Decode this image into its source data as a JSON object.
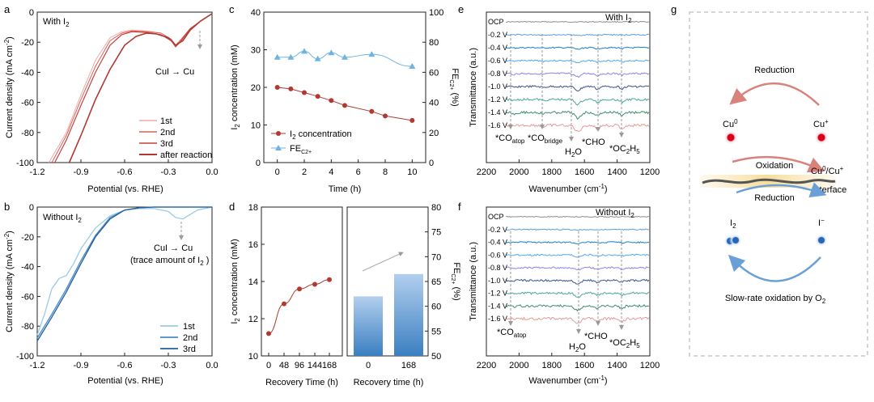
{
  "panels": {
    "a": {
      "letter": "a",
      "condition": "With I",
      "condition_sub": "2",
      "ylabel": "Current density (mA cm",
      "ylabel_sup": "-2",
      "ylabel_end": ")",
      "xlabel": "Potential (vs. RHE)",
      "annotation": "CuI → Cu",
      "x_ticks": [
        "-1.2",
        "-0.9",
        "-0.6",
        "-0.3",
        "0.0"
      ],
      "y_ticks": [
        "0",
        "-20",
        "-40",
        "-60",
        "-80",
        "-100"
      ],
      "legend": [
        "1st",
        "2nd",
        "3rd",
        "after reaction"
      ]
    },
    "b": {
      "letter": "b",
      "condition": "Without I",
      "condition_sub": "2",
      "ylabel": "Current density (mA cm",
      "ylabel_sup": "-2",
      "ylabel_end": ")",
      "xlabel": "Potential (vs. RHE)",
      "annotation_1": "CuI → Cu",
      "annotation_2": "(trace amount of I",
      "annotation_2_sub": "2",
      "annotation_2_end": " )",
      "x_ticks": [
        "-1.2",
        "-0.9",
        "-0.6",
        "-0.3",
        "0.0"
      ],
      "y_ticks": [
        "0",
        "-20",
        "-40",
        "-60",
        "-80",
        "-100"
      ],
      "legend": [
        "1st",
        "2nd",
        "3rd"
      ]
    },
    "c": {
      "letter": "c",
      "ylabel_left": "I",
      "ylabel_left_sub": "2",
      "ylabel_left_end": " concentration (mM)",
      "ylabel_right": "FE",
      "ylabel_right_sub": "C2+",
      "ylabel_right_end": " (%)",
      "xlabel": "Time (h)",
      "x_ticks": [
        "0",
        "2",
        "4",
        "6",
        "8",
        "10"
      ],
      "y_ticks_left": [
        "0",
        "10",
        "20",
        "30",
        "40"
      ],
      "y_ticks_right": [
        "0",
        "20",
        "40",
        "60",
        "80",
        "100"
      ],
      "legend": [
        {
          "label": "I",
          "sub": "2",
          "end": " concentration"
        },
        {
          "label": "FE",
          "sub": "C2+",
          "end": ""
        }
      ]
    },
    "d": {
      "letter": "d",
      "ylabel_left": "I",
      "ylabel_left_sub": "2",
      "ylabel_left_end": " concentration (mM)",
      "ylabel_right": "FE",
      "ylabel_right_sub": "C2+",
      "ylabel_right_end": " (%)",
      "xlabel_left": "Recovery Time (h)",
      "xlabel_right": "Recovery time (h)",
      "x_ticks_left": [
        "0",
        "48",
        "96",
        "144",
        "168"
      ],
      "x_ticks_right": [
        "0",
        "168"
      ],
      "y_ticks_left": [
        "10",
        "12",
        "14",
        "16",
        "18"
      ],
      "y_ticks_right": [
        "50",
        "55",
        "60",
        "65",
        "70",
        "75",
        "80"
      ]
    },
    "e": {
      "letter": "e",
      "condition": "With I",
      "condition_sub": "2",
      "ylabel": "Transmittance (a.u.)",
      "xlabel": "Wavenumber (cm",
      "xlabel_sup": "-1",
      "xlabel_end": ")",
      "x_ticks": [
        "2200",
        "2000",
        "1800",
        "1600",
        "1400",
        "1200"
      ],
      "trace_labels": [
        "OCP",
        "-0.2 V",
        "-0.4 V",
        "-0.6 V",
        "-0.8 V",
        "-1.0 V",
        "-1.2 V",
        "-1.4 V",
        "-1.6 V"
      ],
      "peak_labels": [
        {
          "text": "*CO",
          "sub": "atop"
        },
        {
          "text": "*CO",
          "sub": "bridge"
        },
        {
          "text": "H",
          "sub": "2",
          "end": "O"
        },
        {
          "text": "*CHO",
          "sub": "",
          "end": ""
        },
        {
          "text": "*OC",
          "sub": "2",
          "end": "H",
          "sub2": "5"
        }
      ]
    },
    "f": {
      "letter": "f",
      "condition": "Without I",
      "condition_sub": "2",
      "ylabel": "Transmittance (a.u.)",
      "xlabel": "Wavenumber (cm",
      "xlabel_sup": "-1",
      "xlabel_end": ")",
      "x_ticks": [
        "2200",
        "2000",
        "1800",
        "1600",
        "1400",
        "1200"
      ],
      "trace_labels": [
        "OCP",
        "-0.2 V",
        "-0.4 V",
        "-0.6 V",
        "-0.8 V",
        "-1.0 V",
        "-1.2 V",
        "-1.4 V",
        "-1.6 V"
      ],
      "peak_labels": [
        {
          "text": "*CO",
          "sub": "atop"
        },
        {
          "text": "H",
          "sub": "2",
          "end": "O"
        },
        {
          "text": "*CHO",
          "sub": "",
          "end": ""
        },
        {
          "text": "*OC",
          "sub": "2",
          "end": "H",
          "sub2": "5"
        }
      ]
    },
    "g": {
      "letter": "g",
      "reduction_top": "Reduction",
      "oxidation": "Oxidation",
      "reduction_mid": "Reduction",
      "cu0": "Cu",
      "cu0_sup": "0",
      "cuplus": "Cu",
      "cuplus_sup": "+",
      "interface_1": "Cu",
      "interface_1_sup": "0",
      "interface_1_mid": "/Cu",
      "interface_1_sup2": "+",
      "interface_2": "interface",
      "i2": "I",
      "i2_sub": "2",
      "iminus": "I",
      "iminus_sup": "−",
      "slow": "Slow-rate oxidation by O",
      "slow_sub": "2"
    }
  },
  "colors": {
    "red_dark": "#b03a32",
    "red_mid": "#d8605a",
    "red_light": "#f0a9a6",
    "blue_dark": "#1f5f9e",
    "blue_mid": "#4a8ac4",
    "blue_light": "#9ccbe6",
    "fe_blue": "#6fb3de",
    "bar_top": "#a9c8e8",
    "bar_bot": "#3d82c4"
  },
  "chart_data": [
    {
      "panel": "a",
      "type": "line",
      "title": "With I2",
      "xlabel": "Potential (vs. RHE)",
      "ylabel": "Current density (mA cm-2)",
      "xlim": [
        -1.2,
        0.0
      ],
      "ylim": [
        -100,
        0
      ],
      "series": [
        {
          "name": "1st",
          "x": [
            -1.12,
            -1.0,
            -0.9,
            -0.8,
            -0.7,
            -0.62,
            -0.55,
            -0.45,
            -0.35,
            -0.28,
            -0.25,
            -0.22,
            -0.15,
            -0.08,
            0.0
          ],
          "y": [
            -100,
            -80,
            -55,
            -32,
            -17,
            -13,
            -12,
            -12.5,
            -14,
            -18,
            -22,
            -19,
            -11,
            -6,
            -1
          ]
        },
        {
          "name": "2nd",
          "x": [
            -1.1,
            -1.0,
            -0.9,
            -0.8,
            -0.7,
            -0.62,
            -0.55,
            -0.45,
            -0.35,
            -0.28,
            -0.25,
            -0.22,
            -0.15,
            -0.08,
            0.0
          ],
          "y": [
            -100,
            -82,
            -58,
            -36,
            -19,
            -14,
            -12.5,
            -13,
            -14,
            -18,
            -22,
            -19,
            -11,
            -6,
            -1
          ]
        },
        {
          "name": "3rd",
          "x": [
            -1.08,
            -1.0,
            -0.9,
            -0.8,
            -0.7,
            -0.62,
            -0.55,
            -0.45,
            -0.35,
            -0.28,
            -0.25,
            -0.22,
            -0.15,
            -0.08,
            0.0
          ],
          "y": [
            -100,
            -85,
            -62,
            -40,
            -22,
            -15,
            -13,
            -13.5,
            -15,
            -19,
            -23,
            -20,
            -11,
            -6,
            -1
          ]
        },
        {
          "name": "after reaction",
          "x": [
            -0.98,
            -0.9,
            -0.8,
            -0.7,
            -0.6,
            -0.52,
            -0.45,
            -0.38,
            -0.3,
            -0.25,
            -0.2,
            -0.15,
            -0.08,
            0.0
          ],
          "y": [
            -100,
            -82,
            -58,
            -38,
            -22,
            -16,
            -14,
            -14.5,
            -17,
            -22,
            -19,
            -12,
            -6,
            -1
          ]
        }
      ]
    },
    {
      "panel": "b",
      "type": "line",
      "title": "Without I2",
      "xlabel": "Potential (vs. RHE)",
      "ylabel": "Current density (mA cm-2)",
      "xlim": [
        -1.2,
        0.0
      ],
      "ylim": [
        -100,
        0
      ],
      "series": [
        {
          "name": "1st",
          "x": [
            -1.2,
            -1.15,
            -1.1,
            -1.05,
            -1.0,
            -0.95,
            -0.9,
            -0.8,
            -0.7,
            -0.6,
            -0.5,
            -0.4,
            -0.3,
            -0.25,
            -0.2,
            -0.15,
            -0.1,
            0.0
          ],
          "y": [
            -86,
            -72,
            -55,
            -48,
            -46,
            -38,
            -28,
            -14,
            -6,
            -2,
            -1,
            -1,
            -3,
            -7,
            -8,
            -5,
            -2,
            0
          ]
        },
        {
          "name": "2nd",
          "x": [
            -1.2,
            -1.1,
            -1.0,
            -0.9,
            -0.8,
            -0.7,
            -0.6,
            -0.5,
            -0.4,
            -0.3,
            -0.2,
            -0.1,
            0.0
          ],
          "y": [
            -88,
            -72,
            -55,
            -36,
            -19,
            -7,
            -2,
            -0.5,
            0,
            0,
            0,
            0,
            0
          ]
        },
        {
          "name": "3rd",
          "x": [
            -1.2,
            -1.1,
            -1.0,
            -0.9,
            -0.8,
            -0.7,
            -0.6,
            -0.5,
            -0.4,
            -0.3,
            -0.2,
            -0.1,
            0.0
          ],
          "y": [
            -90,
            -74,
            -57,
            -38,
            -20,
            -8,
            -2,
            -0.5,
            0,
            0,
            0,
            0,
            0
          ]
        }
      ]
    },
    {
      "panel": "c",
      "type": "line",
      "xlabel": "Time (h)",
      "ylabel": "I2 concentration (mM)",
      "ylabel_right": "FE C2+ (%)",
      "xlim": [
        -1,
        11
      ],
      "ylim": [
        0,
        40
      ],
      "ylim_right": [
        0,
        100
      ],
      "series": [
        {
          "name": "I2 concentration",
          "axis": "left",
          "x": [
            0,
            1,
            2,
            3,
            4,
            5,
            7,
            8,
            10
          ],
          "y": [
            20.0,
            19.6,
            18.6,
            17.6,
            16.5,
            15.2,
            13.6,
            12.4,
            11.2
          ]
        },
        {
          "name": "FE C2+",
          "axis": "right",
          "x": [
            0,
            1,
            2,
            3,
            4,
            5,
            7,
            10
          ],
          "y": [
            70,
            70,
            74,
            69,
            73,
            70,
            72,
            64
          ]
        }
      ]
    },
    {
      "panel": "d",
      "type": "line+bar",
      "xlabel": "Recovery Time (h)",
      "ylabel": "I2 concentration (mM)",
      "ylabel_right": "FE C2+ (%)",
      "ylim": [
        10,
        18
      ],
      "ylim_right": [
        50,
        80
      ],
      "series": [
        {
          "name": "I2 concentration",
          "axis": "left",
          "categories": [
            "0",
            "48",
            "96",
            "144",
            "168"
          ],
          "values": [
            11.2,
            12.8,
            13.6,
            13.85,
            14.1
          ]
        },
        {
          "name": "FE C2+",
          "axis": "right",
          "type": "bar",
          "categories": [
            "0",
            "168"
          ],
          "values": [
            62.0,
            66.5
          ]
        }
      ]
    },
    {
      "panel": "e",
      "type": "line",
      "title": "With I2",
      "xlabel": "Wavenumber (cm-1)",
      "ylabel": "Transmittance (a.u.)",
      "xlim": [
        2200,
        1200
      ],
      "series": [
        {
          "name": "OCP"
        },
        {
          "name": "-0.2 V"
        },
        {
          "name": "-0.4 V"
        },
        {
          "name": "-0.6 V"
        },
        {
          "name": "-0.8 V"
        },
        {
          "name": "-1.0 V"
        },
        {
          "name": "-1.2 V"
        },
        {
          "name": "-1.4 V"
        },
        {
          "name": "-1.6 V"
        }
      ],
      "peaks_cm-1": {
        "*CO atop": 2030,
        "*CO bridge": 1850,
        "H2O": 1640,
        "*CHO": 1520,
        "*OC2H5": 1370
      }
    },
    {
      "panel": "f",
      "type": "line",
      "title": "Without I2",
      "xlabel": "Wavenumber (cm-1)",
      "ylabel": "Transmittance (a.u.)",
      "xlim": [
        2200,
        1200
      ],
      "series": [
        {
          "name": "OCP"
        },
        {
          "name": "-0.2 V"
        },
        {
          "name": "-0.4 V"
        },
        {
          "name": "-0.6 V"
        },
        {
          "name": "-0.8 V"
        },
        {
          "name": "-1.0 V"
        },
        {
          "name": "-1.2 V"
        },
        {
          "name": "-1.4 V"
        },
        {
          "name": "-1.6 V"
        }
      ],
      "peaks_cm-1": {
        "*CO atop": 2030,
        "H2O": 1640,
        "*CHO": 1520,
        "*OC2H5": 1370
      }
    }
  ]
}
